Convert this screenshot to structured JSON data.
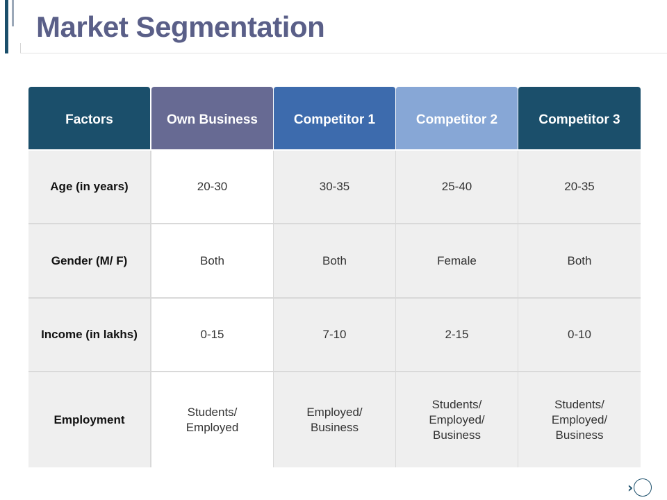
{
  "page": {
    "title": "Market Segmentation"
  },
  "colors": {
    "dark_teal": "#1b4f6b",
    "slate_purple": "#676a93",
    "mid_blue": "#3d6bad",
    "light_blue": "#87a7d6",
    "title_color": "#5a5f88",
    "shaded_cell": "#efefef"
  },
  "table": {
    "headers": [
      "Factors",
      "Own Business",
      "Competitor 1",
      "Competitor 2",
      "Competitor 3"
    ],
    "rows": [
      {
        "factor": "Age (in years)",
        "values": [
          "20-30",
          "30-35",
          "25-40",
          "20-35"
        ]
      },
      {
        "factor": "Gender (M/ F)",
        "values": [
          "Both",
          "Both",
          "Female",
          "Both"
        ]
      },
      {
        "factor": "Income  (in lakhs)",
        "values": [
          "0-15",
          "7-10",
          "2-15",
          "0-10"
        ]
      },
      {
        "factor": "Employment",
        "values": [
          "Students/\nEmployed",
          "Employed/\nBusiness",
          "Students/\nEmployed/\nBusiness",
          "Students/\nEmployed/\nBusiness"
        ]
      }
    ]
  },
  "navigation": {
    "next_icon": "chevron-right-circle-icon"
  }
}
